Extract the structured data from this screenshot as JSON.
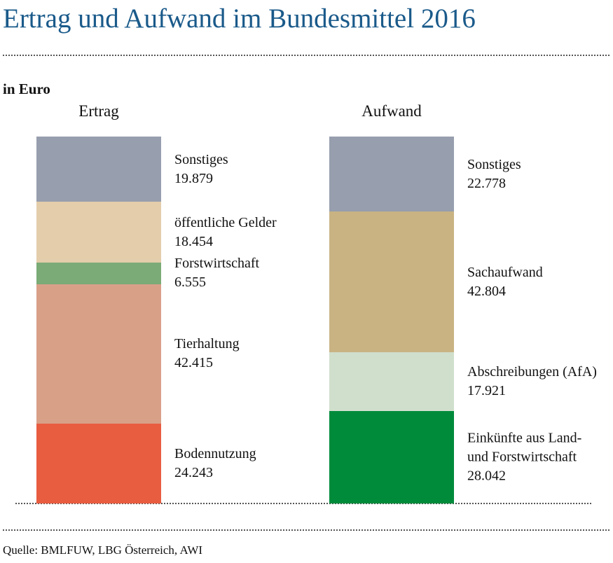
{
  "title": "Ertrag und Aufwand im Bundesmittel 2016",
  "unit": "in Euro",
  "source": "Quelle: BMLFUW, LBG Österreich, AWI",
  "chart_data": [
    {
      "type": "stacked_bar",
      "title": "Ertrag",
      "series": [
        {
          "name": "Sonstiges",
          "color": "#979eae",
          "values": [
            19879
          ],
          "value_labels": [
            "19.879"
          ]
        },
        {
          "name": "öffentliche Gelder",
          "color": "#e3cdaa",
          "values": [
            18454
          ],
          "value_labels": [
            "18.454"
          ]
        },
        {
          "name": "Forstwirtschaft",
          "color": "#7bab76",
          "values": [
            6555
          ],
          "value_labels": [
            "6.555"
          ]
        },
        {
          "name": "Tierhaltung",
          "color": "#d9a088",
          "values": [
            42415
          ],
          "value_labels": [
            "42.415"
          ]
        },
        {
          "name": "Bodennutzung",
          "color": "#e85c40",
          "values": [
            24243
          ],
          "value_labels": [
            "24.243"
          ]
        }
      ]
    },
    {
      "type": "stacked_bar",
      "title": "Aufwand",
      "series": [
        {
          "name": "Sonstiges",
          "color": "#979eae",
          "values": [
            22778
          ],
          "value_labels": [
            "22.778"
          ]
        },
        {
          "name": "Sachaufwand",
          "color": "#c9b383",
          "values": [
            42804
          ],
          "value_labels": [
            "42.804"
          ]
        },
        {
          "name": "Abschreibungen (AfA)",
          "color": "#d0dfcc",
          "values": [
            17921
          ],
          "value_labels": [
            "17.921"
          ]
        },
        {
          "name": "Einkünfte aus Land- und Forstwirtschaft",
          "color": "#008b3b",
          "values": [
            28042
          ],
          "value_labels": [
            "28.042"
          ]
        }
      ]
    }
  ]
}
